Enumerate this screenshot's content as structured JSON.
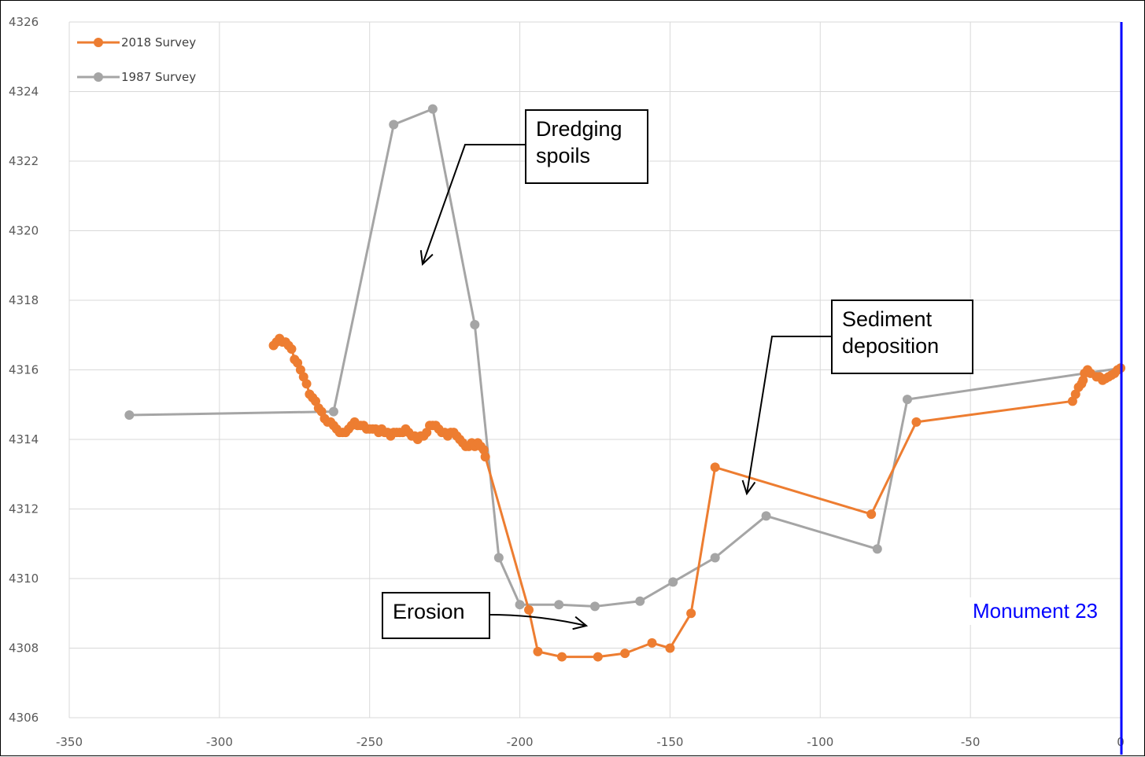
{
  "chart_data": {
    "type": "line",
    "xlim": [
      -350,
      0
    ],
    "ylim": [
      4306,
      4326
    ],
    "x_ticks": [
      -350,
      -300,
      -250,
      -200,
      -150,
      -100,
      -50,
      0
    ],
    "y_ticks": [
      4306,
      4308,
      4310,
      4312,
      4314,
      4316,
      4318,
      4320,
      4322,
      4324,
      4326
    ],
    "grid": true,
    "legend_position": "top-left",
    "series": [
      {
        "name": "2018 Survey",
        "color": "#ED7D31",
        "points": [
          [
            -282,
            4316.7
          ],
          [
            -281,
            4316.8
          ],
          [
            -280,
            4316.9
          ],
          [
            -279,
            4316.8
          ],
          [
            -278,
            4316.8
          ],
          [
            -277,
            4316.7
          ],
          [
            -276,
            4316.6
          ],
          [
            -275,
            4316.3
          ],
          [
            -274,
            4316.2
          ],
          [
            -273,
            4316.0
          ],
          [
            -272,
            4315.8
          ],
          [
            -271,
            4315.6
          ],
          [
            -270,
            4315.3
          ],
          [
            -269,
            4315.2
          ],
          [
            -268,
            4315.1
          ],
          [
            -267,
            4314.9
          ],
          [
            -266,
            4314.8
          ],
          [
            -265,
            4314.6
          ],
          [
            -264,
            4314.5
          ],
          [
            -263,
            4314.5
          ],
          [
            -262,
            4314.4
          ],
          [
            -261,
            4314.3
          ],
          [
            -260,
            4314.2
          ],
          [
            -259,
            4314.2
          ],
          [
            -258,
            4314.2
          ],
          [
            -257,
            4314.3
          ],
          [
            -256,
            4314.4
          ],
          [
            -255,
            4314.5
          ],
          [
            -254,
            4314.4
          ],
          [
            -253,
            4314.4
          ],
          [
            -252,
            4314.4
          ],
          [
            -251,
            4314.3
          ],
          [
            -250,
            4314.3
          ],
          [
            -249,
            4314.3
          ],
          [
            -248,
            4314.3
          ],
          [
            -247,
            4314.2
          ],
          [
            -246,
            4314.3
          ],
          [
            -245,
            4314.2
          ],
          [
            -244,
            4314.2
          ],
          [
            -243,
            4314.1
          ],
          [
            -242,
            4314.2
          ],
          [
            -241,
            4314.2
          ],
          [
            -240,
            4314.2
          ],
          [
            -239,
            4314.2
          ],
          [
            -238,
            4314.3
          ],
          [
            -237,
            4314.2
          ],
          [
            -236,
            4314.1
          ],
          [
            -235,
            4314.1
          ],
          [
            -234,
            4314.0
          ],
          [
            -233,
            4314.1
          ],
          [
            -232,
            4314.1
          ],
          [
            -231,
            4314.2
          ],
          [
            -230,
            4314.4
          ],
          [
            -229,
            4314.4
          ],
          [
            -228,
            4314.4
          ],
          [
            -227,
            4314.3
          ],
          [
            -226,
            4314.2
          ],
          [
            -225,
            4314.2
          ],
          [
            -224,
            4314.1
          ],
          [
            -223,
            4314.2
          ],
          [
            -222,
            4314.2
          ],
          [
            -221,
            4314.1
          ],
          [
            -220,
            4314.0
          ],
          [
            -219,
            4313.9
          ],
          [
            -218,
            4313.8
          ],
          [
            -217,
            4313.8
          ],
          [
            -216,
            4313.9
          ],
          [
            -215,
            4313.8
          ],
          [
            -214,
            4313.9
          ],
          [
            -213,
            4313.8
          ],
          [
            -212,
            4313.7
          ],
          [
            -211.5,
            4313.5
          ],
          [
            -197,
            4309.1
          ],
          [
            -194,
            4307.9
          ],
          [
            -186,
            4307.75
          ],
          [
            -174,
            4307.75
          ],
          [
            -165,
            4307.85
          ],
          [
            -156,
            4308.15
          ],
          [
            -150,
            4308.0
          ],
          [
            -143,
            4309.0
          ],
          [
            -135,
            4313.2
          ],
          [
            -83,
            4311.85
          ],
          [
            -68,
            4314.5
          ],
          [
            -16,
            4315.1
          ],
          [
            -15,
            4315.3
          ],
          [
            -14,
            4315.5
          ],
          [
            -13,
            4315.6
          ],
          [
            -12.5,
            4315.7
          ],
          [
            -12,
            4315.9
          ],
          [
            -11,
            4316.0
          ],
          [
            -10,
            4315.9
          ],
          [
            -8,
            4315.8
          ],
          [
            -7,
            4315.8
          ],
          [
            -6,
            4315.7
          ],
          [
            -5,
            4315.75
          ],
          [
            -4,
            4315.8
          ],
          [
            -3,
            4315.85
          ],
          [
            -2,
            4315.9
          ],
          [
            -1,
            4316.0
          ],
          [
            0,
            4316.05
          ]
        ]
      },
      {
        "name": "1987 Survey",
        "color": "#A5A5A5",
        "points": [
          [
            -330,
            4314.7
          ],
          [
            -262,
            4314.8
          ],
          [
            -242,
            4323.05
          ],
          [
            -229,
            4323.5
          ],
          [
            -215,
            4317.3
          ],
          [
            -207,
            4310.6
          ],
          [
            -200,
            4309.25
          ],
          [
            -187,
            4309.25
          ],
          [
            -175,
            4309.2
          ],
          [
            -160,
            4309.35
          ],
          [
            -149,
            4309.9
          ],
          [
            -135,
            4310.6
          ],
          [
            -118,
            4311.8
          ],
          [
            -81,
            4310.85
          ],
          [
            -71,
            4315.15
          ],
          [
            0,
            4316.05
          ]
        ]
      }
    ],
    "vertical_line": {
      "x": 0,
      "color": "#0000FF",
      "label": "Monument 23"
    },
    "annotations": [
      {
        "id": "dredging",
        "text": [
          "Dredging",
          "spoils"
        ]
      },
      {
        "id": "sediment",
        "text": [
          "Sediment",
          "deposition"
        ]
      },
      {
        "id": "erosion",
        "text": [
          "Erosion"
        ]
      }
    ]
  }
}
